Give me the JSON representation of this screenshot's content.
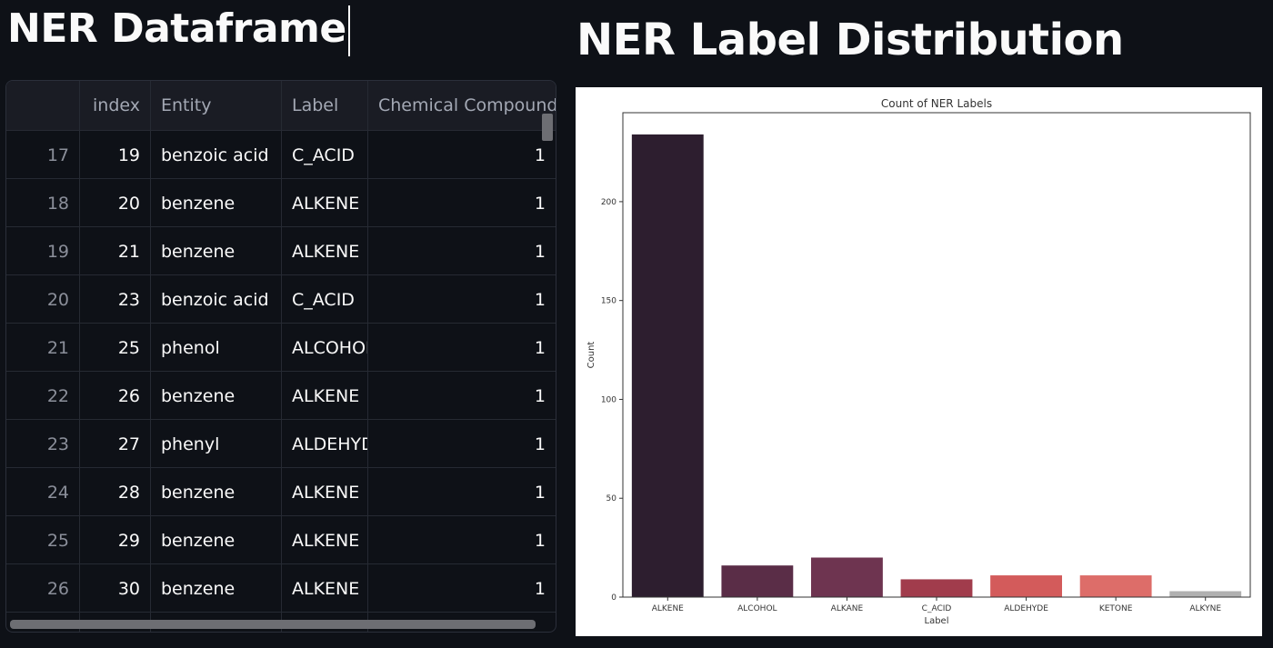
{
  "headers": {
    "left_title": "NER Dataframe",
    "right_title": "NER Label Distribution"
  },
  "dataframe": {
    "columns": [
      "",
      "index",
      "Entity",
      "Label",
      "Chemical Compound"
    ],
    "rows": [
      [
        "17",
        "19",
        "benzoic acid",
        "C_ACID",
        "1"
      ],
      [
        "18",
        "20",
        "benzene",
        "ALKENE",
        "1"
      ],
      [
        "19",
        "21",
        "benzene",
        "ALKENE",
        "1"
      ],
      [
        "20",
        "23",
        "benzoic acid",
        "C_ACID",
        "1"
      ],
      [
        "21",
        "25",
        "phenol",
        "ALCOHOL",
        "1"
      ],
      [
        "22",
        "26",
        "benzene",
        "ALKENE",
        "1"
      ],
      [
        "23",
        "27",
        "phenyl",
        "ALDEHYD",
        "1"
      ],
      [
        "24",
        "28",
        "benzene",
        "ALKENE",
        "1"
      ],
      [
        "25",
        "29",
        "benzene",
        "ALKENE",
        "1"
      ],
      [
        "26",
        "30",
        "benzene",
        "ALKENE",
        "1"
      ]
    ]
  },
  "chart_data": {
    "type": "bar",
    "title": "Count of NER Labels",
    "xlabel": "Label",
    "ylabel": "Count",
    "categories": [
      "ALKENE",
      "ALCOHOL",
      "ALKANE",
      "C_ACID",
      "ALDEHYDE",
      "KETONE",
      "ALKYNE"
    ],
    "values": [
      234,
      16,
      20,
      9,
      11,
      11,
      3
    ],
    "colors": [
      "#2d1e2f",
      "#5a2d47",
      "#6e3450",
      "#a13c4c",
      "#d35b5b",
      "#dd6d69",
      "#b0b0b0"
    ],
    "yticks": [
      0,
      50,
      100,
      150,
      200
    ],
    "ylim": [
      0,
      245
    ],
    "grid": false
  }
}
